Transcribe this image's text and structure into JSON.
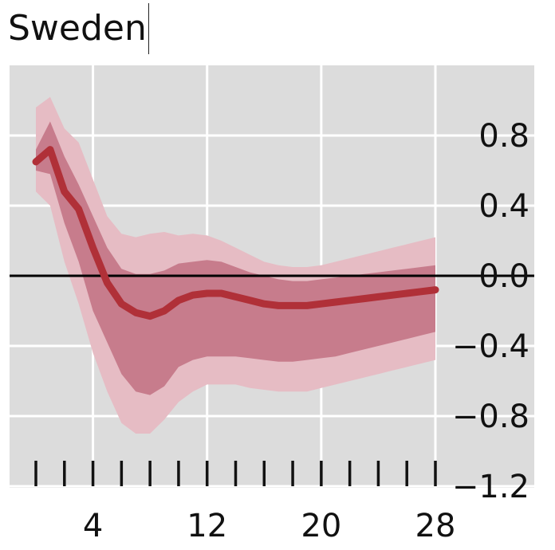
{
  "chart_data": {
    "type": "area",
    "title": "Sweden",
    "xlabel": "",
    "ylabel": "",
    "xlim": [
      0,
      30
    ],
    "ylim": [
      -1.2,
      1.2
    ],
    "xticks": [
      4,
      12,
      20,
      28
    ],
    "xtick_labels": [
      "4",
      "12",
      "20",
      "28"
    ],
    "yticks": [
      0.8,
      0.4,
      0.0,
      -0.4,
      -0.8,
      -1.2
    ],
    "ytick_labels": [
      "0.8",
      "0.4",
      "0.0",
      "−0.4",
      "−0.8",
      "−1.2"
    ],
    "y_axis_side": "right",
    "grid": true,
    "zero_line": true,
    "colors": {
      "background": "#dcdcdc",
      "grid": "#ffffff",
      "line": "#b03038",
      "inner_band": "#c77c8c",
      "outer_band": "#e6bcc4",
      "zero_line": "#000000"
    },
    "x": [
      0,
      1,
      2,
      3,
      4,
      5,
      6,
      7,
      8,
      9,
      10,
      11,
      12,
      13,
      14,
      15,
      16,
      17,
      18,
      19,
      20,
      21,
      22,
      23,
      24,
      25,
      26,
      27,
      28
    ],
    "series": [
      {
        "values": [
          0.65,
          0.72,
          0.48,
          0.38,
          0.16,
          -0.04,
          -0.16,
          -0.21,
          -0.23,
          -0.2,
          -0.14,
          -0.11,
          -0.1,
          -0.1,
          -0.12,
          -0.14,
          -0.16,
          -0.17,
          -0.17,
          -0.17,
          -0.16,
          -0.15,
          -0.14,
          -0.13,
          -0.12,
          -0.11,
          -0.1,
          -0.09,
          -0.08
        ]
      }
    ],
    "bands": [
      {
        "level": "outer",
        "upper": [
          0.96,
          1.02,
          0.84,
          0.76,
          0.55,
          0.34,
          0.24,
          0.22,
          0.24,
          0.25,
          0.23,
          0.24,
          0.23,
          0.2,
          0.16,
          0.12,
          0.08,
          0.06,
          0.05,
          0.05,
          0.06,
          0.08,
          0.1,
          0.12,
          0.14,
          0.16,
          0.18,
          0.2,
          0.22
        ],
        "lower": [
          0.48,
          0.4,
          0.08,
          -0.16,
          -0.44,
          -0.66,
          -0.84,
          -0.9,
          -0.9,
          -0.82,
          -0.72,
          -0.66,
          -0.62,
          -0.62,
          -0.62,
          -0.64,
          -0.65,
          -0.66,
          -0.66,
          -0.66,
          -0.64,
          -0.62,
          -0.6,
          -0.58,
          -0.56,
          -0.54,
          -0.52,
          -0.5,
          -0.48
        ]
      },
      {
        "level": "inner",
        "upper": [
          0.72,
          0.88,
          0.68,
          0.52,
          0.34,
          0.16,
          0.04,
          0.01,
          0.01,
          0.03,
          0.07,
          0.08,
          0.09,
          0.08,
          0.05,
          0.02,
          0.0,
          -0.02,
          -0.03,
          -0.03,
          -0.02,
          -0.01,
          0.0,
          0.01,
          0.02,
          0.03,
          0.04,
          0.05,
          0.06
        ],
        "lower": [
          0.6,
          0.58,
          0.3,
          0.08,
          -0.2,
          -0.38,
          -0.56,
          -0.66,
          -0.68,
          -0.63,
          -0.52,
          -0.48,
          -0.46,
          -0.46,
          -0.46,
          -0.47,
          -0.48,
          -0.49,
          -0.49,
          -0.48,
          -0.47,
          -0.46,
          -0.44,
          -0.42,
          -0.4,
          -0.38,
          -0.36,
          -0.34,
          -0.32
        ]
      }
    ]
  }
}
